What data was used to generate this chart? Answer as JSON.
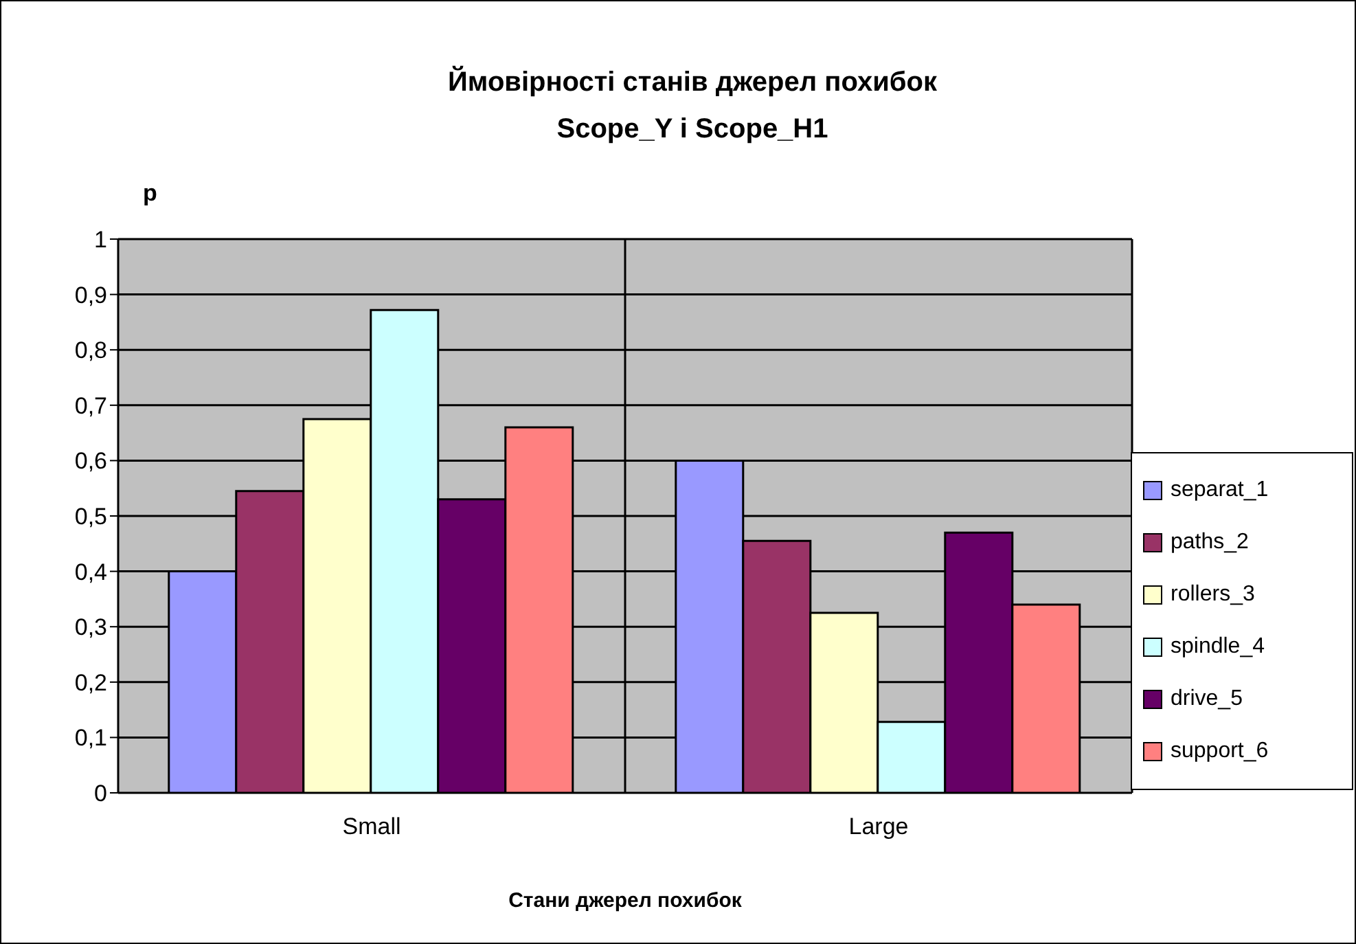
{
  "chart_data": {
    "type": "bar",
    "title": "Ймовірності станів джерел похибок\nScope_Y і Scope_H1",
    "xlabel": "Стани джерел похибок",
    "ylabel": "p",
    "categories": [
      "Small",
      "Large"
    ],
    "series": [
      {
        "name": "separat_1",
        "color": "#9999ff",
        "values": [
          0.4,
          0.6
        ]
      },
      {
        "name": "paths_2",
        "color": "#993366",
        "values": [
          0.545,
          0.455
        ]
      },
      {
        "name": "rollers_3",
        "color": "#ffffcc",
        "values": [
          0.675,
          0.325
        ]
      },
      {
        "name": "spindle_4",
        "color": "#ccffff",
        "values": [
          0.872,
          0.128
        ]
      },
      {
        "name": "drive_5",
        "color": "#660066",
        "values": [
          0.53,
          0.47
        ]
      },
      {
        "name": "support_6",
        "color": "#ff8080",
        "values": [
          0.66,
          0.34
        ]
      }
    ],
    "ylim": [
      0,
      1
    ],
    "yticks": [
      0,
      {
        "value": 0.1,
        "label": "0,1"
      },
      {
        "value": 0.2,
        "label": "0,2"
      },
      {
        "value": 0.3,
        "label": "0,3"
      },
      {
        "value": 0.4,
        "label": "0,4"
      },
      {
        "value": 0.5,
        "label": "0,5"
      },
      {
        "value": 0.6,
        "label": "0,6"
      },
      {
        "value": 0.7,
        "label": "0,7"
      },
      {
        "value": 0.8,
        "label": "0,8"
      },
      {
        "value": 0.9,
        "label": "0,9"
      },
      1
    ],
    "grid": true,
    "legend": "right"
  }
}
